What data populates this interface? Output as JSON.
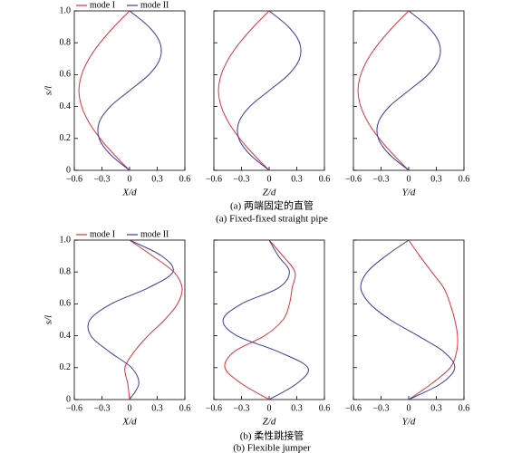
{
  "chart_data": [
    {
      "type": "line",
      "xlabel": "X/d",
      "ylabel": "s/l",
      "legend": "above",
      "xlim": [
        -0.6,
        0.6
      ],
      "xticks": [
        {
          "value": -0.6,
          "label": "−0.6"
        },
        {
          "value": -0.3,
          "label": "−0.3"
        },
        0,
        0.3,
        0.6
      ],
      "ylim": [
        0,
        1
      ],
      "yticks": [
        0,
        0.2,
        0.4,
        0.6,
        0.8,
        {
          "value": 1,
          "label": "1.0"
        }
      ],
      "ytick_labels": true,
      "series": [
        {
          "name": "mode I",
          "color": "#e0303a",
          "x": [
            0,
            -0.17,
            -0.32,
            -0.44,
            -0.52,
            -0.55,
            -0.52,
            -0.44,
            -0.32,
            -0.17,
            0
          ],
          "values": [
            0,
            0.1,
            0.2,
            0.3,
            0.4,
            0.5,
            0.6,
            0.7,
            0.8,
            0.9,
            1
          ]
        },
        {
          "name": "mode II",
          "color": "#3a3aa0",
          "x": [
            0,
            -0.21,
            -0.33,
            -0.33,
            -0.21,
            0,
            0.21,
            0.33,
            0.33,
            0.21,
            0
          ],
          "values": [
            0,
            0.1,
            0.2,
            0.3,
            0.4,
            0.5,
            0.6,
            0.7,
            0.8,
            0.9,
            1
          ]
        }
      ]
    },
    {
      "type": "line",
      "xlabel": "Z/d",
      "xlim": [
        -0.6,
        0.6
      ],
      "xticks": [
        {
          "value": -0.6,
          "label": "−0.6"
        },
        {
          "value": -0.3,
          "label": "−0.3"
        },
        0,
        0.3,
        0.6
      ],
      "ylim": [
        0,
        1
      ],
      "yticks": [
        0,
        0.2,
        0.4,
        0.6,
        0.8,
        1
      ],
      "ytick_labels": false,
      "series": [
        {
          "color": "#e0303a",
          "x": [
            0,
            -0.17,
            -0.32,
            -0.44,
            -0.52,
            -0.55,
            -0.52,
            -0.44,
            -0.32,
            -0.17,
            0
          ],
          "values": [
            0,
            0.1,
            0.2,
            0.3,
            0.4,
            0.5,
            0.6,
            0.7,
            0.8,
            0.9,
            1
          ]
        },
        {
          "color": "#3a3aa0",
          "x": [
            0,
            -0.21,
            -0.33,
            -0.33,
            -0.21,
            0,
            0.21,
            0.33,
            0.33,
            0.21,
            0
          ],
          "values": [
            0,
            0.1,
            0.2,
            0.3,
            0.4,
            0.5,
            0.6,
            0.7,
            0.8,
            0.9,
            1
          ]
        }
      ]
    },
    {
      "type": "line",
      "xlabel": "Y/d",
      "xlim": [
        -0.6,
        0.6
      ],
      "xticks": [
        {
          "value": -0.6,
          "label": "−0.6"
        },
        {
          "value": -0.3,
          "label": "−0.3"
        },
        0,
        0.3,
        0.6
      ],
      "ylim": [
        0,
        1
      ],
      "yticks": [
        0,
        0.2,
        0.4,
        0.6,
        0.8,
        1
      ],
      "ytick_labels": false,
      "series": [
        {
          "color": "#e0303a",
          "x": [
            0,
            -0.17,
            -0.32,
            -0.44,
            -0.52,
            -0.55,
            -0.52,
            -0.44,
            -0.32,
            -0.17,
            0
          ],
          "values": [
            0,
            0.1,
            0.2,
            0.3,
            0.4,
            0.5,
            0.6,
            0.7,
            0.8,
            0.9,
            1
          ]
        },
        {
          "color": "#3a3aa0",
          "x": [
            0,
            -0.21,
            -0.33,
            -0.33,
            -0.21,
            0,
            0.21,
            0.33,
            0.33,
            0.21,
            0
          ],
          "values": [
            0,
            0.1,
            0.2,
            0.3,
            0.4,
            0.5,
            0.6,
            0.7,
            0.8,
            0.9,
            1
          ]
        }
      ]
    },
    {
      "type": "line",
      "xlabel": "X/d",
      "ylabel": "s/l",
      "legend": "above",
      "xlim": [
        -0.6,
        0.6
      ],
      "xticks": [
        {
          "value": -0.6,
          "label": "−0.6"
        },
        {
          "value": -0.3,
          "label": "−0.3"
        },
        0,
        0.3,
        0.6
      ],
      "ylim": [
        0,
        1
      ],
      "yticks": [
        0,
        0.2,
        0.4,
        0.6,
        0.8,
        {
          "value": 1,
          "label": "1.0"
        }
      ],
      "ytick_labels": true,
      "series": [
        {
          "name": "mode I",
          "color": "#e0303a",
          "x": [
            0,
            -0.02,
            -0.05,
            0.05,
            0.2,
            0.38,
            0.52,
            0.57,
            0.48,
            0.25,
            0
          ],
          "values": [
            0,
            0.1,
            0.2,
            0.3,
            0.4,
            0.5,
            0.6,
            0.7,
            0.8,
            0.9,
            1
          ]
        },
        {
          "name": "mode II",
          "color": "#3a3aa0",
          "x": [
            0,
            0.1,
            0.02,
            -0.22,
            -0.42,
            -0.43,
            -0.2,
            0.2,
            0.47,
            0.35,
            0
          ],
          "values": [
            0,
            0.1,
            0.2,
            0.3,
            0.4,
            0.5,
            0.6,
            0.7,
            0.8,
            0.9,
            1
          ]
        }
      ]
    },
    {
      "type": "line",
      "xlabel": "Z/d",
      "xlim": [
        -0.6,
        0.6
      ],
      "xticks": [
        {
          "value": -0.6,
          "label": "−0.6"
        },
        {
          "value": -0.3,
          "label": "−0.3"
        },
        0,
        0.3,
        0.6
      ],
      "ylim": [
        0,
        1
      ],
      "yticks": [
        0,
        0.2,
        0.4,
        0.6,
        0.8,
        1
      ],
      "ytick_labels": false,
      "series": [
        {
          "color": "#e0303a",
          "x": [
            0,
            -0.3,
            -0.48,
            -0.38,
            -0.05,
            0.15,
            0.22,
            0.25,
            0.28,
            0.15,
            0
          ],
          "values": [
            0,
            0.1,
            0.2,
            0.3,
            0.4,
            0.5,
            0.6,
            0.7,
            0.8,
            0.9,
            1
          ]
        },
        {
          "color": "#3a3aa0",
          "x": [
            0,
            0.3,
            0.42,
            0.1,
            -0.35,
            -0.5,
            -0.3,
            0.1,
            0.22,
            0.1,
            0
          ],
          "values": [
            0,
            0.1,
            0.2,
            0.3,
            0.4,
            0.5,
            0.6,
            0.7,
            0.8,
            0.9,
            1
          ]
        }
      ]
    },
    {
      "type": "line",
      "xlabel": "Y/d",
      "xlim": [
        -0.6,
        0.6
      ],
      "xticks": [
        {
          "value": -0.6,
          "label": "−0.6"
        },
        {
          "value": -0.3,
          "label": "−0.3"
        },
        0,
        0.3,
        0.6
      ],
      "ylim": [
        0,
        1
      ],
      "yticks": [
        0,
        0.2,
        0.4,
        0.6,
        0.8,
        1
      ],
      "ytick_labels": false,
      "series": [
        {
          "color": "#e0303a",
          "x": [
            0,
            0.25,
            0.45,
            0.52,
            0.53,
            0.5,
            0.45,
            0.38,
            0.25,
            0.12,
            0
          ],
          "values": [
            0,
            0.1,
            0.2,
            0.3,
            0.4,
            0.5,
            0.6,
            0.7,
            0.8,
            0.9,
            1
          ]
        },
        {
          "color": "#3a3aa0",
          "x": [
            0,
            0.35,
            0.5,
            0.38,
            0.1,
            -0.2,
            -0.42,
            -0.52,
            -0.45,
            -0.25,
            0
          ],
          "values": [
            0,
            0.1,
            0.2,
            0.3,
            0.4,
            0.5,
            0.6,
            0.7,
            0.8,
            0.9,
            1
          ]
        }
      ]
    }
  ],
  "captions": [
    [
      "(a) 两端固定的直管",
      "(a) Fixed-fixed straight pipe"
    ],
    [
      "(b) 柔性跳接管",
      "(b) Flexible jumper"
    ]
  ]
}
